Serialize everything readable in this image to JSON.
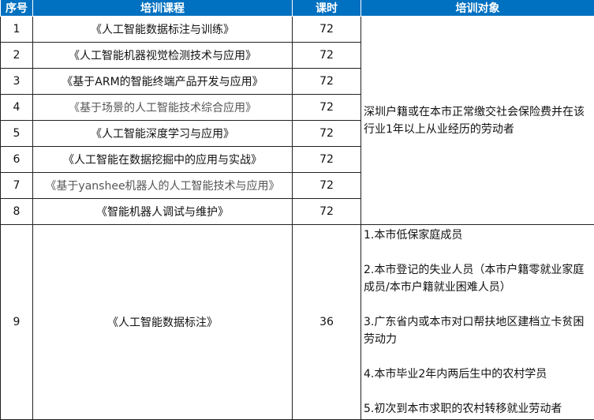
{
  "colors": {
    "header_bg": "#0070C0",
    "header_text": "#FFFFFF",
    "border": "#222222"
  },
  "headers": [
    "序号",
    "培训课程",
    "课时",
    "培训对象"
  ],
  "rows": [
    {
      "no": "1",
      "course": "《人工智能数据标注与训练》",
      "hours": "72"
    },
    {
      "no": "2",
      "course": "《人工智能机器视觉检测技术与应用》",
      "hours": "72"
    },
    {
      "no": "3",
      "course": "《基于ARM的智能终端产品开发与应用》",
      "hours": "72"
    },
    {
      "no": "4",
      "course": "《基于场景的人工智能技术综合应用》",
      "hours": "72"
    },
    {
      "no": "5",
      "course": "《人工智能深度学习与应用》",
      "hours": "72"
    },
    {
      "no": "6",
      "course": "《人工智能在数据挖掘中的应用与实战》",
      "hours": "72"
    },
    {
      "no": "7",
      "course": "《基于yanshee机器人的人工智能技术与应用》",
      "hours": "72"
    },
    {
      "no": "8",
      "course": "《智能机器人调试与维护》",
      "hours": "72"
    },
    {
      "no": "9",
      "course": "《人工智能数据标注》",
      "hours": "36"
    }
  ],
  "target_group_1": "深圳户籍或在本市正常缴交社会保险费并在该行业1年以上从业经历的劳动者",
  "target_group_2": [
    "1.本市低保家庭成员",
    "2.本市登记的失业人员（本市户籍零就业家庭成员/本市户籍就业困难人员）",
    "3.广东省内或本市对口帮扶地区建档立卡贫困劳动力",
    "4.本市毕业2年内两后生中的农村学员",
    "5.初次到本市求职的农村转移就业劳动者"
  ]
}
